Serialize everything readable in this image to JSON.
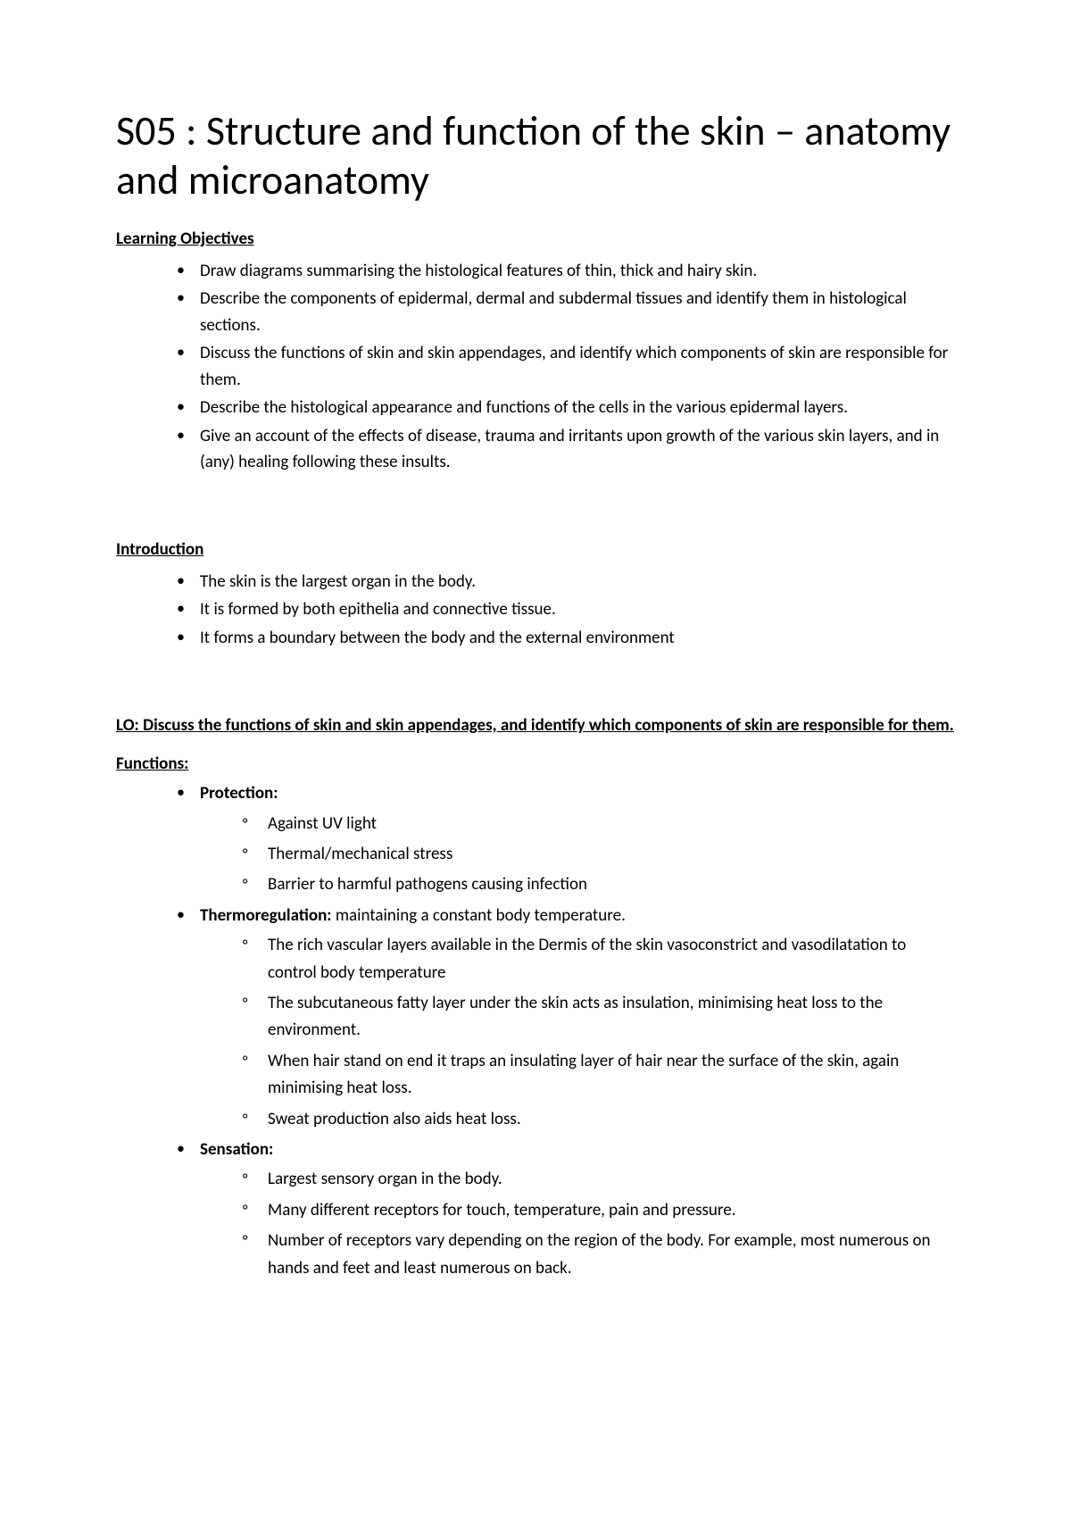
{
  "title": "S05 : Structure and function of the skin – anatomy and microanatomy",
  "sections": {
    "learning_objectives": {
      "heading": "Learning Objectives",
      "items": [
        "Draw diagrams summarising the histological features of thin, thick and hairy skin.",
        "Describe the components of epidermal, dermal and subdermal tissues and identify them in histological sections.",
        "Discuss the functions of skin and skin appendages, and identify which components of skin are responsible for them.",
        "Describe the histological appearance and functions of the cells in the various epidermal layers.",
        "Give an account of the effects of disease, trauma and irritants upon growth of the various skin layers, and in (any) healing following these insults."
      ]
    },
    "introduction": {
      "heading": "Introduction",
      "items": [
        "The skin is the largest organ in the body.",
        "It is formed by both epithelia and connective tissue.",
        "It forms a boundary between the body and the external environment"
      ]
    },
    "lo_heading": "LO: Discuss the functions of skin and skin appendages, and identify which components of skin are responsible for them.",
    "functions": {
      "heading": "Functions:",
      "items": [
        {
          "label": "Protection:",
          "text": "",
          "sub": [
            "Against UV light",
            "Thermal/mechanical stress",
            "Barrier to harmful pathogens causing infection"
          ]
        },
        {
          "label": "Thermoregulation:",
          "text": " maintaining a constant body temperature.",
          "sub": [
            "The rich vascular layers available in the Dermis of the skin vasoconstrict and vasodilatation to control body temperature",
            "The subcutaneous fatty layer under the skin acts as insulation, minimising heat loss to the environment.",
            "When hair stand on end it traps an insulating layer of hair near the surface of the skin, again minimising heat loss.",
            "Sweat production also aids heat loss."
          ]
        },
        {
          "label": "Sensation:",
          "text": "",
          "sub": [
            "Largest sensory organ in the body.",
            "Many different receptors for touch, temperature, pain and pressure.",
            "Number of receptors vary depending on the region of the body. For example, most numerous on hands and feet and least numerous on back."
          ]
        }
      ]
    }
  }
}
